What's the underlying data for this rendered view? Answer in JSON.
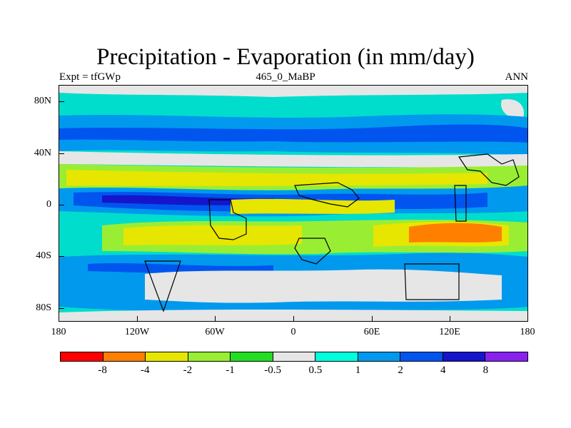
{
  "title": "Precipitation - Evaporation (in mm/day)",
  "subtitle_left": "Expt = tfGWp",
  "subtitle_center": "465_0_MaBP",
  "subtitle_right": "ANN",
  "axes": {
    "y_labels": [
      "80N",
      "40N",
      "0",
      "40S",
      "80S"
    ],
    "x_labels": [
      "180",
      "120W",
      "60W",
      "0",
      "60E",
      "120E",
      "180"
    ]
  },
  "colorbar": {
    "colors": [
      "#ff0000",
      "#ff7f00",
      "#e6e600",
      "#99ee33",
      "#22dd22",
      "#e6e6e6",
      "#00ffdd",
      "#0099ee",
      "#0055ee",
      "#1515cc",
      "#8822ee"
    ],
    "labels": [
      "-8",
      "-4",
      "-2",
      "-1",
      "-0.5",
      "0.5",
      "1",
      "2",
      "4",
      "8"
    ]
  }
}
